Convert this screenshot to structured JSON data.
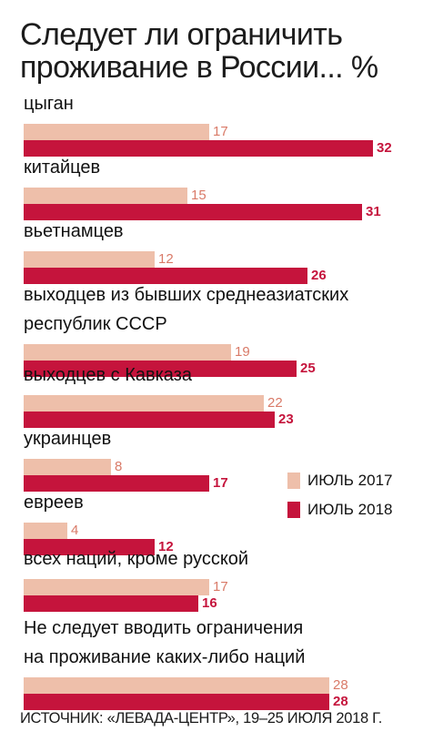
{
  "chart_data": {
    "type": "bar",
    "orientation": "horizontal",
    "title": "Следует ли ограничить проживание в России... %",
    "categories": [
      "цыган",
      "китайцев",
      "вьетнамцев",
      "выходцев из бывших среднеазиатских республик СССР",
      "выходцев с Кавказа",
      "украинцев",
      "евреев",
      "всех наций, кроме русской",
      "Не следует вводить ограничения на проживание каких-либо наций"
    ],
    "category_lines": [
      [
        "цыган"
      ],
      [
        "китайцев"
      ],
      [
        "вьетнамцев"
      ],
      [
        "выходцев из бывших среднеазиатских",
        "республик СССР"
      ],
      [
        "выходцев с Кавказа"
      ],
      [
        "украинцев"
      ],
      [
        "евреев"
      ],
      [
        "всех наций, кроме русской"
      ],
      [
        "Не следует вводить ограничения",
        "на проживание каких-либо наций"
      ]
    ],
    "series": [
      {
        "name": "ИЮЛЬ 2017",
        "color": "#eebfaa",
        "values": [
          17,
          15,
          12,
          19,
          22,
          8,
          4,
          17,
          28
        ]
      },
      {
        "name": "ИЮЛЬ 2018",
        "color": "#c5143c",
        "values": [
          32,
          31,
          26,
          25,
          23,
          17,
          12,
          16,
          28
        ]
      }
    ],
    "xlim": [
      0,
      32
    ],
    "grid": false,
    "legend_position": "right"
  },
  "title_text": "Следует ли ограничить проживание в России... %",
  "source": "ИСТОЧНИК: «ЛЕВАДА-ЦЕНТР», 19–25 ИЮЛЯ 2018 Г."
}
